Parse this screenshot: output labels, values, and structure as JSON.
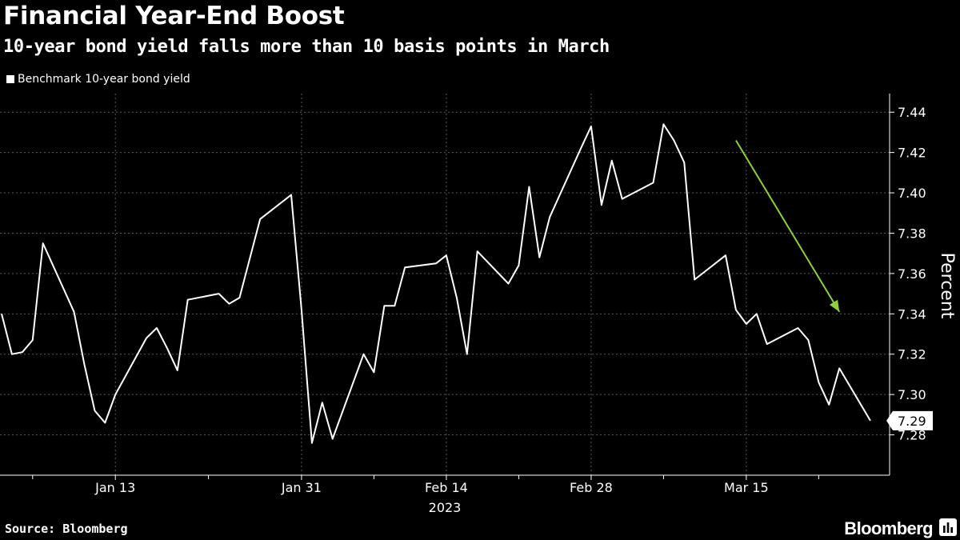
{
  "header": {
    "title": "Financial Year-End Boost",
    "subtitle": "10-year bond yield falls more than 10 basis points in March"
  },
  "legend": {
    "label": "Benchmark 10-year bond yield",
    "color": "#ffffff"
  },
  "footer": {
    "source": "Source: Bloomberg",
    "brand": "Bloomberg"
  },
  "colors": {
    "background": "#000000",
    "line": "#ffffff",
    "grid": "#5a5a5a",
    "arrow": "#8bd13a"
  },
  "icons": {
    "brand_mark": "bar-chart-icon"
  },
  "chart_data": {
    "type": "line",
    "title": "Financial Year-End Boost",
    "subtitle": "10-year bond yield falls more than 10 basis points in March",
    "ylabel": "Percent",
    "xlabel": "",
    "year_label": "2023",
    "ylim": [
      7.26,
      7.45
    ],
    "yticks": [
      "7.28",
      "7.30",
      "7.32",
      "7.34",
      "7.36",
      "7.38",
      "7.40",
      "7.42",
      "7.44"
    ],
    "xticks": [
      {
        "label": "Jan 13",
        "date": "2023-01-13"
      },
      {
        "label": "Jan 31",
        "date": "2023-01-31"
      },
      {
        "label": "Feb 14",
        "date": "2023-02-14"
      },
      {
        "label": "Feb 28",
        "date": "2023-02-28"
      },
      {
        "label": "Mar 15",
        "date": "2023-03-15"
      }
    ],
    "grid": true,
    "legend_position": "top-left",
    "last_value": "7.29",
    "series": [
      {
        "name": "Benchmark 10-year bond yield",
        "points": [
          [
            "2023-01-02",
            7.34
          ],
          [
            "2023-01-03",
            7.32
          ],
          [
            "2023-01-04",
            7.321
          ],
          [
            "2023-01-05",
            7.327
          ],
          [
            "2023-01-06",
            7.375
          ],
          [
            "2023-01-09",
            7.341
          ],
          [
            "2023-01-10",
            7.315
          ],
          [
            "2023-01-11",
            7.292
          ],
          [
            "2023-01-12",
            7.286
          ],
          [
            "2023-01-13",
            7.3
          ],
          [
            "2023-01-16",
            7.328
          ],
          [
            "2023-01-17",
            7.333
          ],
          [
            "2023-01-18",
            7.323
          ],
          [
            "2023-01-19",
            7.312
          ],
          [
            "2023-01-20",
            7.347
          ],
          [
            "2023-01-23",
            7.35
          ],
          [
            "2023-01-24",
            7.345
          ],
          [
            "2023-01-25",
            7.348
          ],
          [
            "2023-01-27",
            7.387
          ],
          [
            "2023-01-30",
            7.399
          ],
          [
            "2023-01-31",
            7.342
          ],
          [
            "2023-02-01",
            7.276
          ],
          [
            "2023-02-02",
            7.296
          ],
          [
            "2023-02-03",
            7.278
          ],
          [
            "2023-02-06",
            7.32
          ],
          [
            "2023-02-07",
            7.311
          ],
          [
            "2023-02-08",
            7.344
          ],
          [
            "2023-02-09",
            7.344
          ],
          [
            "2023-02-10",
            7.363
          ],
          [
            "2023-02-13",
            7.365
          ],
          [
            "2023-02-14",
            7.369
          ],
          [
            "2023-02-15",
            7.348
          ],
          [
            "2023-02-16",
            7.32
          ],
          [
            "2023-02-17",
            7.371
          ],
          [
            "2023-02-20",
            7.355
          ],
          [
            "2023-02-21",
            7.364
          ],
          [
            "2023-02-22",
            7.403
          ],
          [
            "2023-02-23",
            7.368
          ],
          [
            "2023-02-24",
            7.388
          ],
          [
            "2023-02-27",
            7.422
          ],
          [
            "2023-02-28",
            7.433
          ],
          [
            "2023-03-01",
            7.394
          ],
          [
            "2023-03-02",
            7.416
          ],
          [
            "2023-03-03",
            7.397
          ],
          [
            "2023-03-06",
            7.405
          ],
          [
            "2023-03-07",
            7.434
          ],
          [
            "2023-03-08",
            7.426
          ],
          [
            "2023-03-09",
            7.415
          ],
          [
            "2023-03-10",
            7.357
          ],
          [
            "2023-03-13",
            7.369
          ],
          [
            "2023-03-14",
            7.342
          ],
          [
            "2023-03-15",
            7.335
          ],
          [
            "2023-03-16",
            7.34
          ],
          [
            "2023-03-17",
            7.325
          ],
          [
            "2023-03-20",
            7.333
          ],
          [
            "2023-03-21",
            7.327
          ],
          [
            "2023-03-22",
            7.306
          ],
          [
            "2023-03-23",
            7.295
          ],
          [
            "2023-03-24",
            7.313
          ],
          [
            "2023-03-27",
            7.287
          ]
        ]
      }
    ],
    "annotations": [
      {
        "type": "arrow",
        "from": [
          "2023-03-14",
          7.426
        ],
        "to": [
          "2023-03-24",
          7.341
        ],
        "color": "#8bd13a"
      }
    ]
  }
}
